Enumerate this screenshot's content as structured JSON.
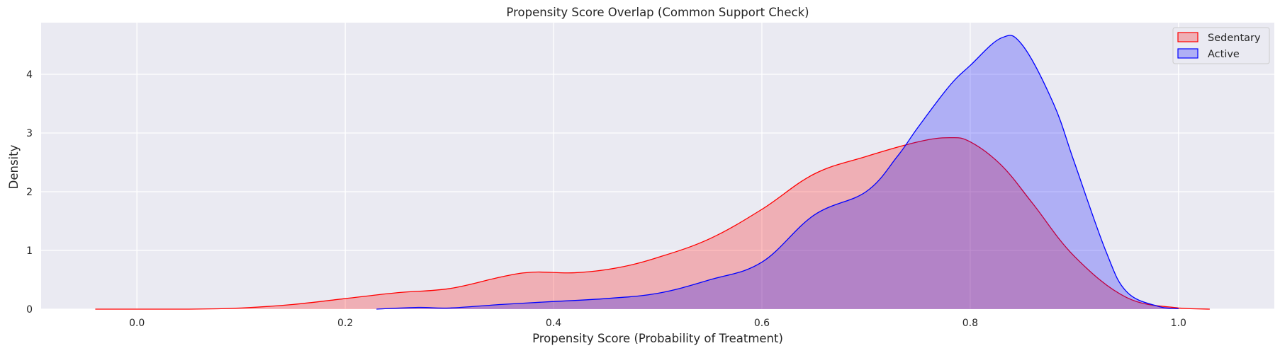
{
  "chart_data": {
    "type": "area",
    "title": "Propensity Score Overlap (Common Support Check)",
    "xlabel": "Propensity Score (Probability of Treatment)",
    "ylabel": "Density",
    "xlim": [
      -0.092,
      1.092
    ],
    "ylim": [
      0,
      4.88
    ],
    "xticks": [
      0.0,
      0.2,
      0.4,
      0.6,
      0.8,
      1.0
    ],
    "xtick_labels": [
      "0.0",
      "0.2",
      "0.4",
      "0.6",
      "0.8",
      "1.0"
    ],
    "yticks": [
      0,
      1,
      2,
      3,
      4
    ],
    "ytick_labels": [
      "0",
      "1",
      "2",
      "3",
      "4"
    ],
    "grid": true,
    "legend_position": "top-right",
    "series": [
      {
        "name": "Sedentary",
        "color": "#ff0000",
        "x": [
          -0.04,
          0.05,
          0.1,
          0.15,
          0.2,
          0.25,
          0.3,
          0.35,
          0.38,
          0.42,
          0.46,
          0.5,
          0.55,
          0.6,
          0.65,
          0.7,
          0.75,
          0.78,
          0.8,
          0.83,
          0.86,
          0.9,
          0.95,
          1.0,
          1.03
        ],
        "y": [
          0.0,
          0.0,
          0.02,
          0.08,
          0.18,
          0.28,
          0.35,
          0.55,
          0.63,
          0.62,
          0.7,
          0.88,
          1.2,
          1.7,
          2.3,
          2.6,
          2.85,
          2.92,
          2.85,
          2.45,
          1.8,
          0.9,
          0.2,
          0.02,
          0.0
        ]
      },
      {
        "name": "Active",
        "color": "#0000ff",
        "x": [
          0.23,
          0.27,
          0.3,
          0.35,
          0.4,
          0.45,
          0.5,
          0.55,
          0.6,
          0.65,
          0.7,
          0.73,
          0.75,
          0.78,
          0.8,
          0.83,
          0.85,
          0.88,
          0.9,
          0.93,
          0.95,
          0.98,
          1.0
        ],
        "y": [
          0.0,
          0.03,
          0.02,
          0.08,
          0.13,
          0.18,
          0.27,
          0.5,
          0.8,
          1.6,
          2.0,
          2.6,
          3.1,
          3.8,
          4.15,
          4.62,
          4.5,
          3.5,
          2.5,
          1.0,
          0.3,
          0.05,
          0.01
        ]
      }
    ]
  }
}
